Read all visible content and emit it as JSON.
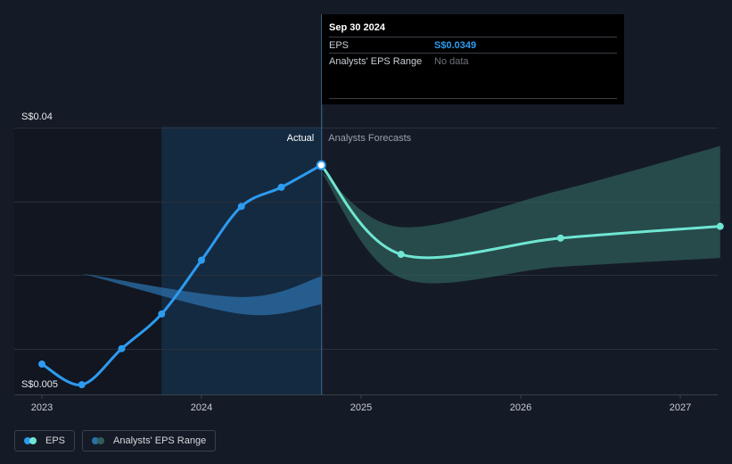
{
  "chart_data": {
    "type": "line",
    "y_axis": {
      "top_label": "S$0.04",
      "bottom_label": "S$0.005",
      "min": 0.005,
      "max": 0.04
    },
    "x_ticks": [
      {
        "label": "2023",
        "t": 2023.0
      },
      {
        "label": "2024",
        "t": 2024.0
      },
      {
        "label": "2025",
        "t": 2025.0
      },
      {
        "label": "2026",
        "t": 2026.0
      },
      {
        "label": "2027",
        "t": 2027.0
      }
    ],
    "x_range": [
      2022.83,
      2027.25
    ],
    "regions": {
      "actual_label": "Actual",
      "forecast_label": "Analysts Forecasts",
      "divider_t": 2024.75,
      "highlight_start_t": 2023.75
    },
    "series": [
      {
        "name": "EPS",
        "color": "#2d9bf0",
        "points": [
          {
            "t": 2023.0,
            "v": 0.0079
          },
          {
            "t": 2023.25,
            "v": 0.0051
          },
          {
            "t": 2023.5,
            "v": 0.01
          },
          {
            "t": 2023.75,
            "v": 0.0147
          },
          {
            "t": 2024.0,
            "v": 0.022
          },
          {
            "t": 2024.25,
            "v": 0.0293
          },
          {
            "t": 2024.5,
            "v": 0.0319
          },
          {
            "t": 2024.75,
            "v": 0.0349
          }
        ]
      },
      {
        "name": "EPS forecast",
        "color": "#6fe6d3",
        "points": [
          {
            "t": 2024.75,
            "v": 0.0349
          },
          {
            "t": 2025.25,
            "v": 0.0228
          },
          {
            "t": 2026.25,
            "v": 0.025
          },
          {
            "t": 2027.25,
            "v": 0.0266
          }
        ]
      }
    ],
    "ranges": [
      {
        "name": "Analysts' EPS Range (past)",
        "color": "#2b6fa8",
        "upper": [
          {
            "t": 2023.25,
            "v": 0.0202
          },
          {
            "t": 2024.25,
            "v": 0.017
          },
          {
            "t": 2024.75,
            "v": 0.0198
          }
        ],
        "lower": [
          {
            "t": 2023.25,
            "v": 0.0202
          },
          {
            "t": 2024.25,
            "v": 0.0147
          },
          {
            "t": 2024.75,
            "v": 0.016
          }
        ]
      },
      {
        "name": "Analysts' EPS Range (forecast)",
        "color": "#2f5f5a",
        "upper": [
          {
            "t": 2024.75,
            "v": 0.034
          },
          {
            "t": 2025.25,
            "v": 0.0265
          },
          {
            "t": 2026.25,
            "v": 0.0315
          },
          {
            "t": 2027.25,
            "v": 0.0375
          }
        ],
        "lower": [
          {
            "t": 2024.75,
            "v": 0.034
          },
          {
            "t": 2025.25,
            "v": 0.0196
          },
          {
            "t": 2026.25,
            "v": 0.0211
          },
          {
            "t": 2027.25,
            "v": 0.0223
          }
        ]
      }
    ],
    "gridlines": [
      0.04,
      0.03,
      0.02,
      0.01
    ]
  },
  "tooltip": {
    "date": "Sep 30 2024",
    "rows": [
      {
        "key": "EPS",
        "value": "S$0.0349"
      },
      {
        "key": "Analysts' EPS Range",
        "value": "No data"
      }
    ]
  },
  "legend": [
    {
      "label": "EPS",
      "colors": [
        "#2d9bf0",
        "#6fe6d3"
      ]
    },
    {
      "label": "Analysts' EPS Range",
      "colors": [
        "#2b6fa8",
        "#2f5f5a"
      ]
    }
  ]
}
